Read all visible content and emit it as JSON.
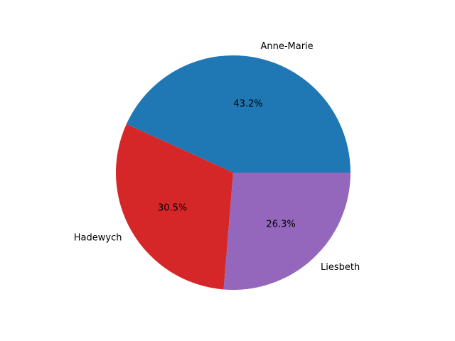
{
  "chart_data": {
    "type": "pie",
    "title": "",
    "slices": [
      {
        "label": "Anne-Marie",
        "percent": 43.2,
        "percent_label": "43.2%",
        "color": "#1f77b4"
      },
      {
        "label": "Hadewych",
        "percent": 30.5,
        "percent_label": "30.5%",
        "color": "#d62728"
      },
      {
        "label": "Liesbeth",
        "percent": 26.3,
        "percent_label": "26.3%",
        "color": "#9467bd"
      }
    ],
    "start_angle_deg": 0,
    "direction": "counterclockwise",
    "autopct_format": "%1.1f%%"
  }
}
